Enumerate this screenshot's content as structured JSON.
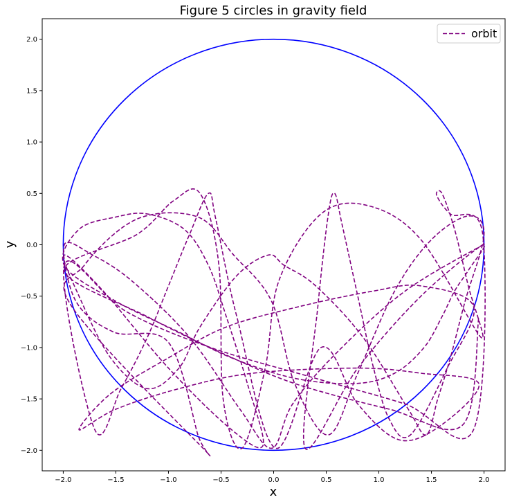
{
  "chart_data": {
    "type": "line",
    "title": "Figure 5 circles in gravity field",
    "xlabel": "x",
    "ylabel": "y",
    "xlim": [
      -2.2,
      2.2
    ],
    "ylim": [
      -2.2,
      2.2
    ],
    "xticks": [
      -2.0,
      -1.5,
      -1.0,
      -0.5,
      0.0,
      0.5,
      1.0,
      1.5,
      2.0
    ],
    "yticks": [
      -2.0,
      -1.5,
      -1.0,
      -0.5,
      0.0,
      0.5,
      1.0,
      1.5,
      2.0
    ],
    "xtick_labels": [
      "−2.0",
      "−1.5",
      "−1.0",
      "−0.5",
      "0.0",
      "0.5",
      "1.0",
      "1.5",
      "2.0"
    ],
    "ytick_labels": [
      "−2.0",
      "−1.5",
      "−1.0",
      "−0.5",
      "0.0",
      "0.5",
      "1.0",
      "1.5",
      "2.0"
    ],
    "grid": false,
    "legend_position": "top-right",
    "boundary": {
      "shape": "circle",
      "center": [
        0,
        0
      ],
      "radius": 2.0,
      "color": "#0000ff"
    },
    "series": [
      {
        "name": "orbit",
        "color": "#800080",
        "style": "dashed",
        "x": [
          1.99,
          1.25,
          0.6,
          0.18,
          -0.02,
          -0.32,
          -0.8,
          -1.35,
          -1.72,
          -1.99,
          -1.88,
          -1.52,
          -1.0,
          -0.72,
          -0.7,
          -1.92,
          -1.8,
          -1.3,
          -0.72,
          -0.38,
          -0.02,
          0.2,
          0.52,
          0.8,
          1.15,
          1.5,
          1.85,
          2.0,
          1.82,
          1.68,
          1.56,
          1.45,
          1.28,
          0.85,
          0.4,
          0.1,
          -0.05,
          -0.35,
          -0.7,
          -0.9,
          -1.2,
          -1.55,
          -1.85,
          -1.99,
          -1.62,
          -1.0,
          -0.4,
          -0.1,
          -0.25,
          -0.45,
          -0.62,
          -0.85,
          -1.2,
          -1.5,
          -1.85,
          -1.99,
          -1.5,
          -0.9,
          -0.4,
          0.2,
          0.78,
          1.15,
          1.43,
          1.6,
          1.72,
          1.85,
          1.99,
          1.4,
          0.8,
          0.3,
          0.42,
          0.52,
          0.58,
          0.65,
          0.8,
          0.95,
          1.1,
          1.3,
          1.65,
          1.9,
          1.4,
          0.95,
          0.25,
          -0.45,
          -1.0,
          -1.55,
          -1.85,
          -1.5,
          -0.9,
          -0.2,
          0.8,
          1.4,
          1.95,
          1.6,
          1.2,
          0.8,
          0.45,
          0.02,
          -0.35,
          -0.55,
          -0.62,
          -0.8,
          -1.0,
          -1.2,
          -1.45,
          -1.7,
          -1.99,
          -1.4,
          -0.6,
          0.4,
          1.25,
          1.9,
          1.99,
          1.68,
          1.55,
          1.6,
          1.72,
          1.85,
          1.97,
          1.4,
          0.9,
          0.45,
          0.05,
          -0.08,
          -0.3,
          -0.48,
          -0.52,
          -0.7,
          -0.95,
          -1.3,
          -1.99,
          -1.2,
          -0.5,
          0.2,
          1.1,
          1.8,
          1.95
        ],
        "y": [
          0.0,
          -0.45,
          -1.05,
          -1.55,
          -1.98,
          -1.6,
          -0.9,
          -0.35,
          -0.1,
          0.0,
          -0.55,
          -0.85,
          -0.95,
          -1.85,
          -1.95,
          -0.6,
          -0.2,
          0.25,
          0.27,
          -0.1,
          -0.55,
          -1.35,
          -1.85,
          -1.25,
          -0.45,
          0.05,
          0.28,
          0.1,
          -0.55,
          -1.1,
          -1.5,
          -1.85,
          -1.6,
          -0.9,
          -0.4,
          -0.2,
          -0.1,
          -0.3,
          -0.8,
          -1.2,
          -1.4,
          -1.1,
          -0.5,
          -0.1,
          -0.45,
          -1.2,
          -1.8,
          -1.95,
          -1.35,
          -0.7,
          -0.2,
          0.15,
          0.3,
          0.27,
          0.15,
          -0.2,
          -0.55,
          -0.85,
          -1.1,
          -1.3,
          -1.35,
          -1.25,
          -1.0,
          -0.7,
          -0.45,
          -0.25,
          0.0,
          -0.5,
          -1.2,
          -1.98,
          -0.6,
          0.3,
          0.5,
          0.2,
          -0.5,
          -1.2,
          -1.7,
          -1.85,
          -1.2,
          -0.6,
          -0.4,
          -0.45,
          -0.6,
          -0.8,
          -1.1,
          -1.45,
          -1.8,
          -1.6,
          -1.4,
          -1.25,
          -1.2,
          -1.25,
          -1.35,
          -1.75,
          -1.9,
          -1.55,
          -1.0,
          -1.98,
          -0.7,
          0.25,
          0.5,
          0.1,
          -0.4,
          -0.9,
          -1.4,
          -1.8,
          -0.2,
          -0.65,
          -1.0,
          -1.3,
          -1.55,
          -1.8,
          0.08,
          0.3,
          0.48,
          0.5,
          0.15,
          -0.4,
          -0.9,
          0.05,
          0.38,
          0.3,
          -0.35,
          -1.2,
          -1.98,
          -1.5,
          -0.2,
          0.5,
          0.43,
          0.1,
          -0.25,
          -0.7,
          -1.05,
          -1.35,
          -1.6,
          -1.75,
          -0.7
        ]
      }
    ]
  }
}
